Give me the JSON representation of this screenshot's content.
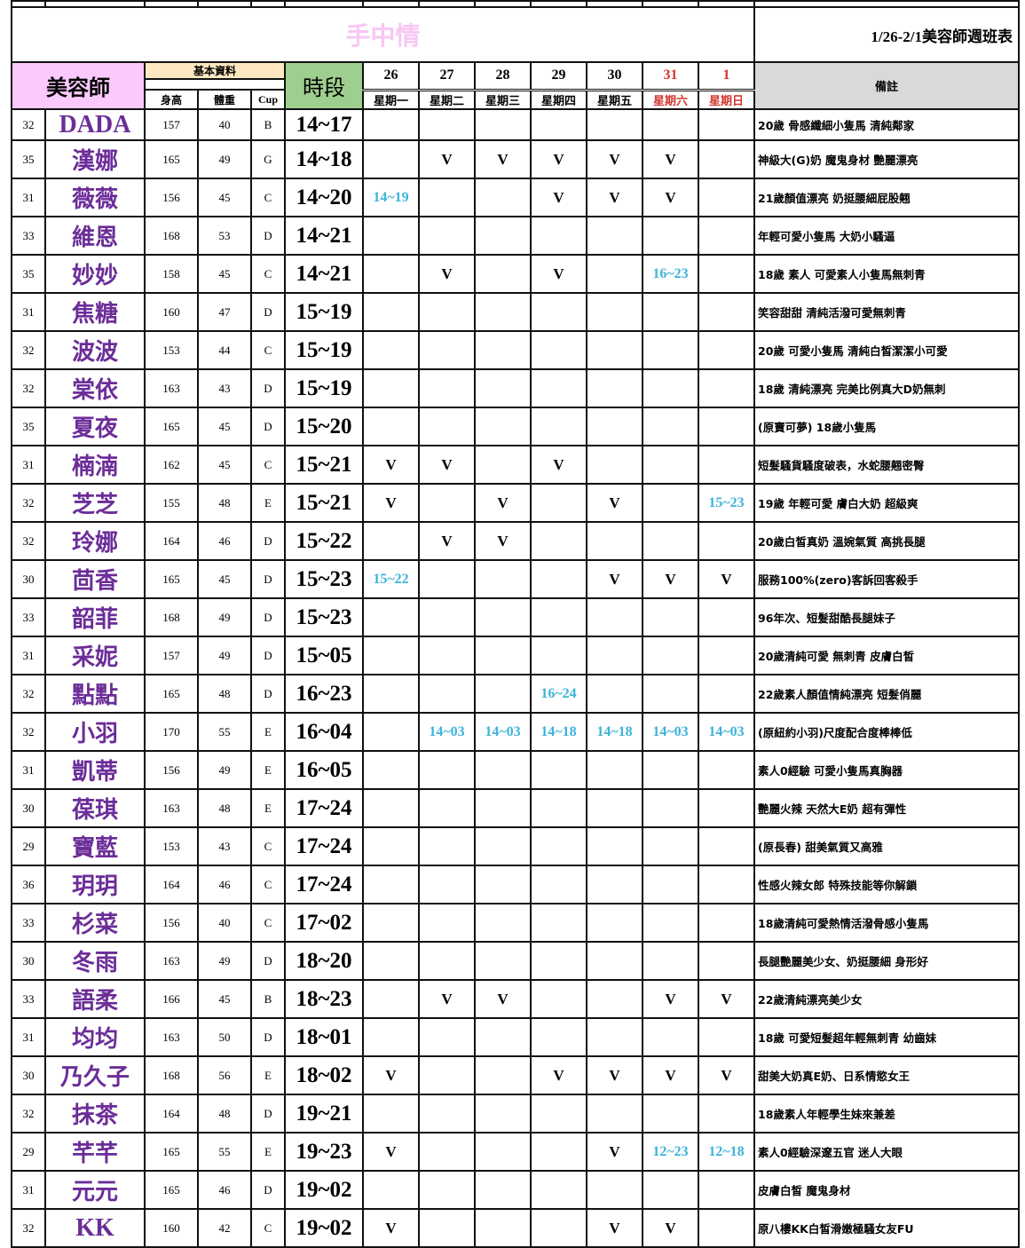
{
  "title": {
    "brand": "手中情",
    "week": "1/26-2/1美容師週班表"
  },
  "header": {
    "stylist": "美容師",
    "basic_info": "基本資料",
    "height": "身高",
    "weight": "體重",
    "cup": "Cup",
    "time": "時段",
    "note": "備註",
    "days": [
      {
        "date": "26",
        "weekday": "星期一",
        "weekend": false
      },
      {
        "date": "27",
        "weekday": "星期二",
        "weekend": false
      },
      {
        "date": "28",
        "weekday": "星期三",
        "weekend": false
      },
      {
        "date": "29",
        "weekday": "星期四",
        "weekend": false
      },
      {
        "date": "30",
        "weekday": "星期五",
        "weekend": false
      },
      {
        "date": "31",
        "weekday": "星期六",
        "weekend": true
      },
      {
        "date": "1",
        "weekday": "星期日",
        "weekend": true
      }
    ]
  },
  "colors": {
    "name": "#6b2d98",
    "custom_time": "#3cb3d9",
    "weekend": "#d2352d",
    "stylist_header": "#fbc9fb",
    "basic_header": "#fde8c2",
    "time_header": "#9fcf8e",
    "note_header": "#d9d9d9",
    "brand": "#f8c6f4"
  },
  "rows": [
    {
      "age": "32",
      "name": "DADA",
      "height": "157",
      "weight": "40",
      "cup": "B",
      "time": "14~17",
      "schedule": [
        "",
        "",
        "",
        "",
        "",
        "",
        ""
      ],
      "note": "20歲 骨感纖細小隻馬 清純鄰家"
    },
    {
      "age": "35",
      "name": "漢娜",
      "height": "165",
      "weight": "49",
      "cup": "G",
      "time": "14~18",
      "schedule": [
        "",
        "V",
        "V",
        "V",
        "V",
        "V",
        ""
      ],
      "note": "神級大(G)奶 魔鬼身材 艷麗漂亮"
    },
    {
      "age": "31",
      "name": "薇薇",
      "height": "156",
      "weight": "45",
      "cup": "C",
      "time": "14~20",
      "schedule": [
        "14~19",
        "",
        "",
        "V",
        "V",
        "V",
        ""
      ],
      "note": "21歲顏值漂亮 奶挺腰細屁股翹"
    },
    {
      "age": "33",
      "name": "維恩",
      "height": "168",
      "weight": "53",
      "cup": "D",
      "time": "14~21",
      "schedule": [
        "",
        "",
        "",
        "",
        "",
        "",
        ""
      ],
      "note": "年輕可愛小隻馬 大奶小騷逼"
    },
    {
      "age": "35",
      "name": "妙妙",
      "height": "158",
      "weight": "45",
      "cup": "C",
      "time": "14~21",
      "schedule": [
        "",
        "V",
        "",
        "V",
        "",
        "16~23",
        ""
      ],
      "note": "18歲 素人 可愛素人小隻馬無刺青"
    },
    {
      "age": "31",
      "name": "焦糖",
      "height": "160",
      "weight": "47",
      "cup": "D",
      "time": "15~19",
      "schedule": [
        "",
        "",
        "",
        "",
        "",
        "",
        ""
      ],
      "note": "笑容甜甜 清純活潑可愛無刺青"
    },
    {
      "age": "32",
      "name": "波波",
      "height": "153",
      "weight": "44",
      "cup": "C",
      "time": "15~19",
      "schedule": [
        "",
        "",
        "",
        "",
        "",
        "",
        ""
      ],
      "note": "20歲 可愛小隻馬  清純白皙潔潔小可愛"
    },
    {
      "age": "32",
      "name": "棠依",
      "height": "163",
      "weight": "43",
      "cup": "D",
      "time": "15~19",
      "schedule": [
        "",
        "",
        "",
        "",
        "",
        "",
        ""
      ],
      "note": "18歲 清純漂亮 完美比例真大D奶無刺"
    },
    {
      "age": "35",
      "name": "夏夜",
      "height": "165",
      "weight": "45",
      "cup": "D",
      "time": "15~20",
      "schedule": [
        "",
        "",
        "",
        "",
        "",
        "",
        ""
      ],
      "note": "(原寶可夢) 18歲小隻馬"
    },
    {
      "age": "31",
      "name": "楠湳",
      "height": "162",
      "weight": "45",
      "cup": "C",
      "time": "15~21",
      "schedule": [
        "V",
        "V",
        "",
        "V",
        "",
        "",
        ""
      ],
      "note": "短髮騷貨騷度破表，水蛇腰翹密臀"
    },
    {
      "age": "32",
      "name": "芝芝",
      "height": "155",
      "weight": "48",
      "cup": "E",
      "time": "15~21",
      "schedule": [
        "V",
        "",
        "V",
        "",
        "V",
        "",
        "15~23"
      ],
      "note": "19歲 年輕可愛 膚白大奶 超級爽"
    },
    {
      "age": "32",
      "name": "玲娜",
      "height": "164",
      "weight": "46",
      "cup": "D",
      "time": "15~22",
      "schedule": [
        "",
        "V",
        "V",
        "",
        "",
        "",
        ""
      ],
      "note": "20歲白皙真奶 溫婉氣質 高挑長腿"
    },
    {
      "age": "30",
      "name": "茴香",
      "height": "165",
      "weight": "45",
      "cup": "D",
      "time": "15~23",
      "schedule": [
        "15~22",
        "",
        "",
        "",
        "V",
        "V",
        "V"
      ],
      "note": "服務100%(zero)客訴回客殺手"
    },
    {
      "age": "33",
      "name": "韶菲",
      "height": "168",
      "weight": "49",
      "cup": "D",
      "time": "15~23",
      "schedule": [
        "",
        "",
        "",
        "",
        "",
        "",
        ""
      ],
      "note": "96年次、短髮甜酷長腿妹子"
    },
    {
      "age": "31",
      "name": "采妮",
      "height": "157",
      "weight": "49",
      "cup": "D",
      "time": "15~05",
      "schedule": [
        "",
        "",
        "",
        "",
        "",
        "",
        ""
      ],
      "note": "20歲清純可愛 無刺青 皮膚白皙"
    },
    {
      "age": "32",
      "name": "點點",
      "height": "165",
      "weight": "48",
      "cup": "D",
      "time": "16~23",
      "schedule": [
        "",
        "",
        "",
        "16~24",
        "",
        "",
        ""
      ],
      "note": "22歲素人顏值情純漂亮 短髮俏麗"
    },
    {
      "age": "32",
      "name": "小羽",
      "height": "170",
      "weight": "55",
      "cup": "E",
      "time": "16~04",
      "schedule": [
        "",
        "14~03",
        "14~03",
        "14~18",
        "14~18",
        "14~03",
        "14~03"
      ],
      "note": "(原紐約小羽)尺度配合度棒棒低"
    },
    {
      "age": "31",
      "name": "凱蒂",
      "height": "156",
      "weight": "49",
      "cup": "E",
      "time": "16~05",
      "schedule": [
        "",
        "",
        "",
        "",
        "",
        "",
        ""
      ],
      "note": "素人0經驗 可愛小隻馬真胸器"
    },
    {
      "age": "30",
      "name": "葆琪",
      "height": "163",
      "weight": "48",
      "cup": "E",
      "time": "17~24",
      "schedule": [
        "",
        "",
        "",
        "",
        "",
        "",
        ""
      ],
      "note": "艷麗火辣 天然大E奶 超有彈性"
    },
    {
      "age": "29",
      "name": "寶藍",
      "height": "153",
      "weight": "43",
      "cup": "C",
      "time": "17~24",
      "schedule": [
        "",
        "",
        "",
        "",
        "",
        "",
        ""
      ],
      "note": "(原長春) 甜美氣質又高雅"
    },
    {
      "age": "36",
      "name": "玥玥",
      "height": "164",
      "weight": "46",
      "cup": "C",
      "time": "17~24",
      "schedule": [
        "",
        "",
        "",
        "",
        "",
        "",
        ""
      ],
      "note": "性感火辣女郎 特殊技能等你解鎖"
    },
    {
      "age": "33",
      "name": "杉菜",
      "height": "156",
      "weight": "40",
      "cup": "C",
      "time": "17~02",
      "schedule": [
        "",
        "",
        "",
        "",
        "",
        "",
        ""
      ],
      "note": "18歲清純可愛熱情活潑骨感小隻馬"
    },
    {
      "age": "30",
      "name": "冬雨",
      "height": "163",
      "weight": "49",
      "cup": "D",
      "time": "18~20",
      "schedule": [
        "",
        "",
        "",
        "",
        "",
        "",
        ""
      ],
      "note": "長腿艷麗美少女、奶挺腰細 身形好"
    },
    {
      "age": "33",
      "name": "語柔",
      "height": "166",
      "weight": "45",
      "cup": "B",
      "time": "18~23",
      "schedule": [
        "",
        "V",
        "V",
        "",
        "",
        "V",
        "V"
      ],
      "note": "22歲清純漂亮美少女"
    },
    {
      "age": "31",
      "name": "均均",
      "height": "163",
      "weight": "50",
      "cup": "D",
      "time": "18~01",
      "schedule": [
        "",
        "",
        "",
        "",
        "",
        "",
        ""
      ],
      "note": "18歲  可愛短髮超年輕無刺青 幼齒妹"
    },
    {
      "age": "30",
      "name": "乃久子",
      "height": "168",
      "weight": "56",
      "cup": "E",
      "time": "18~02",
      "schedule": [
        "V",
        "",
        "",
        "V",
        "V",
        "V",
        "V"
      ],
      "note": "甜美大奶真E奶、日系情慾女王"
    },
    {
      "age": "32",
      "name": "抹茶",
      "height": "164",
      "weight": "48",
      "cup": "D",
      "time": "19~21",
      "schedule": [
        "",
        "",
        "",
        "",
        "",
        "",
        ""
      ],
      "note": "18歲素人年輕學生妹來兼差"
    },
    {
      "age": "29",
      "name": "芊芊",
      "height": "165",
      "weight": "55",
      "cup": "E",
      "time": "19~23",
      "schedule": [
        "V",
        "",
        "",
        "",
        "V",
        "12~23",
        "12~18"
      ],
      "note": "素人0經驗深邃五官 迷人大眼"
    },
    {
      "age": "31",
      "name": "元元",
      "height": "165",
      "weight": "46",
      "cup": "D",
      "time": "19~02",
      "schedule": [
        "",
        "",
        "",
        "",
        "",
        "",
        ""
      ],
      "note": "皮膚白皙 魔鬼身材"
    },
    {
      "age": "32",
      "name": "KK",
      "height": "160",
      "weight": "42",
      "cup": "C",
      "time": "19~02",
      "schedule": [
        "V",
        "",
        "",
        "",
        "V",
        "V",
        ""
      ],
      "note": "原八樓KK白皙滑嫩極騷女友FU"
    }
  ]
}
